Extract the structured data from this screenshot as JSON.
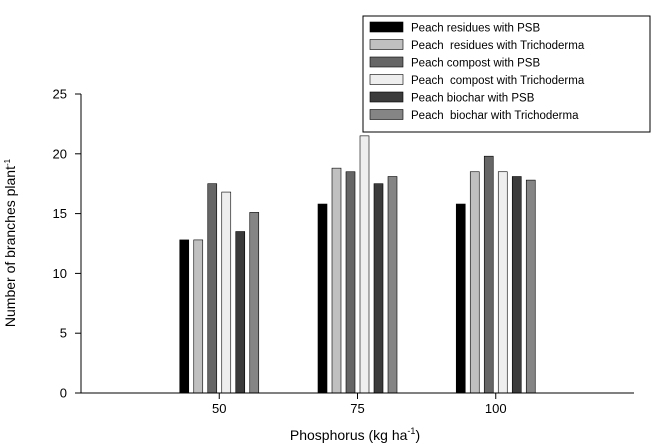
{
  "chart_data": {
    "type": "bar",
    "title": "",
    "xlabel": "Phosphorus (kg ha",
    "xlabel_sup": "-1",
    "xlabel_suffix": ")",
    "ylabel": "Number of branches plant",
    "ylabel_sup": "-1",
    "ylim": [
      0,
      25
    ],
    "yticks": [
      "0",
      "5",
      "10",
      "15",
      "20",
      "25"
    ],
    "categories": [
      "50",
      "75",
      "100"
    ],
    "grid": false,
    "legend_position": "top-right",
    "series": [
      {
        "name": "Peach residues with PSB",
        "color": "#000000",
        "values": [
          12.8,
          15.8,
          15.8
        ]
      },
      {
        "name": "Peach  residues with Trichoderma",
        "color": "#c0c0c0",
        "values": [
          12.8,
          18.8,
          18.5
        ]
      },
      {
        "name": "Peach compost with PSB",
        "color": "#666666",
        "values": [
          17.5,
          18.5,
          19.8
        ]
      },
      {
        "name": "Peach  compost with Trichoderma",
        "color": "#eeeeee",
        "values": [
          16.8,
          21.5,
          18.5
        ]
      },
      {
        "name": "Peach biochar with PSB",
        "color": "#3b3b3b",
        "values": [
          13.5,
          17.5,
          18.1
        ]
      },
      {
        "name": "Peach  biochar with Trichoderma",
        "color": "#858585",
        "values": [
          15.1,
          18.1,
          17.8
        ]
      }
    ]
  }
}
